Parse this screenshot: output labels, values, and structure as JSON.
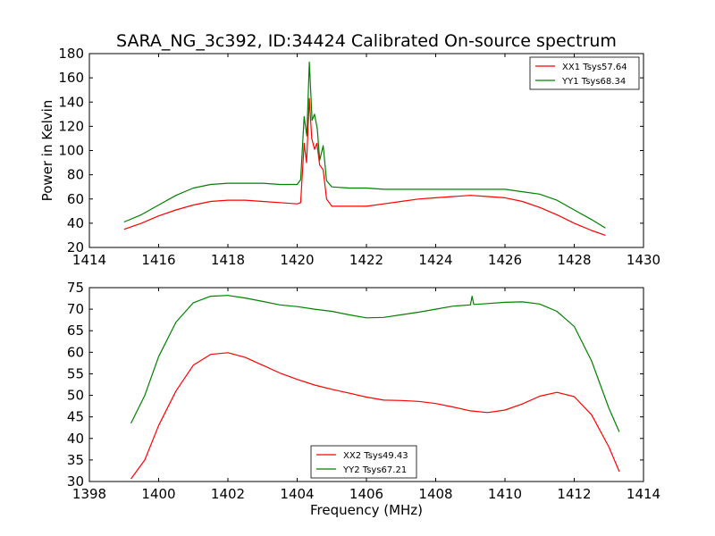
{
  "figure": {
    "title": "SARA_NG_3c392, ID:34424 Calibrated On-source spectrum"
  },
  "chart_data": [
    {
      "type": "line",
      "title": "SARA_NG_3c392, ID:34424 Calibrated On-source spectrum",
      "xlabel": "",
      "ylabel": "Power in Kelvin",
      "xlim": [
        1414,
        1430
      ],
      "ylim": [
        20,
        180
      ],
      "xticks": [
        1414,
        1416,
        1418,
        1420,
        1422,
        1424,
        1426,
        1428,
        1430
      ],
      "yticks": [
        20,
        40,
        60,
        80,
        100,
        120,
        140,
        160,
        180
      ],
      "grid": false,
      "legend": "top-right",
      "series": [
        {
          "name": "XX1 Tsys57.64",
          "color": "#ff0000",
          "points": [
            [
              1415.0,
              35
            ],
            [
              1415.5,
              40
            ],
            [
              1416.0,
              46
            ],
            [
              1416.5,
              51
            ],
            [
              1417.0,
              55
            ],
            [
              1417.5,
              58
            ],
            [
              1418.0,
              59
            ],
            [
              1418.5,
              59
            ],
            [
              1419.0,
              58
            ],
            [
              1419.5,
              57
            ],
            [
              1420.0,
              56
            ],
            [
              1420.1,
              57
            ],
            [
              1420.2,
              106
            ],
            [
              1420.27,
              90
            ],
            [
              1420.35,
              143
            ],
            [
              1420.42,
              110
            ],
            [
              1420.5,
              101
            ],
            [
              1420.57,
              106
            ],
            [
              1420.65,
              88
            ],
            [
              1420.75,
              84
            ],
            [
              1420.85,
              60
            ],
            [
              1421.0,
              54
            ],
            [
              1421.5,
              54
            ],
            [
              1422.0,
              54
            ],
            [
              1422.5,
              56
            ],
            [
              1423.0,
              58
            ],
            [
              1423.5,
              60
            ],
            [
              1424.0,
              61
            ],
            [
              1424.5,
              62
            ],
            [
              1425.0,
              63
            ],
            [
              1425.5,
              62
            ],
            [
              1426.0,
              61
            ],
            [
              1426.5,
              58
            ],
            [
              1427.0,
              53
            ],
            [
              1427.5,
              47
            ],
            [
              1428.0,
              40
            ],
            [
              1428.5,
              34
            ],
            [
              1428.9,
              30
            ]
          ]
        },
        {
          "name": "YY1 Tsys68.34",
          "color": "#008000",
          "points": [
            [
              1415.0,
              41
            ],
            [
              1415.5,
              47
            ],
            [
              1416.0,
              55
            ],
            [
              1416.5,
              63
            ],
            [
              1417.0,
              69
            ],
            [
              1417.5,
              72
            ],
            [
              1418.0,
              73
            ],
            [
              1418.5,
              73
            ],
            [
              1419.0,
              73
            ],
            [
              1419.5,
              72
            ],
            [
              1420.0,
              72
            ],
            [
              1420.1,
              76
            ],
            [
              1420.2,
              128
            ],
            [
              1420.28,
              112
            ],
            [
              1420.35,
              173
            ],
            [
              1420.43,
              125
            ],
            [
              1420.5,
              130
            ],
            [
              1420.58,
              118
            ],
            [
              1420.65,
              92
            ],
            [
              1420.75,
              104
            ],
            [
              1420.85,
              75
            ],
            [
              1421.0,
              70
            ],
            [
              1421.5,
              69
            ],
            [
              1422.0,
              69
            ],
            [
              1422.5,
              68
            ],
            [
              1423.0,
              68
            ],
            [
              1423.5,
              68
            ],
            [
              1424.0,
              68
            ],
            [
              1424.5,
              68
            ],
            [
              1425.0,
              68
            ],
            [
              1425.5,
              68
            ],
            [
              1426.0,
              68
            ],
            [
              1426.5,
              66
            ],
            [
              1427.0,
              64
            ],
            [
              1427.5,
              59
            ],
            [
              1428.0,
              51
            ],
            [
              1428.5,
              43
            ],
            [
              1428.9,
              36
            ]
          ]
        }
      ]
    },
    {
      "type": "line",
      "title": "",
      "xlabel": "Frequency (MHz)",
      "ylabel": "",
      "xlim": [
        1398,
        1414
      ],
      "ylim": [
        30,
        75
      ],
      "xticks": [
        1398,
        1400,
        1402,
        1404,
        1406,
        1408,
        1410,
        1412,
        1414
      ],
      "yticks": [
        30,
        35,
        40,
        45,
        50,
        55,
        60,
        65,
        70,
        75
      ],
      "grid": false,
      "legend": "bottom-center",
      "series": [
        {
          "name": "XX2 Tsys49.43",
          "color": "#ff0000",
          "points": [
            [
              1399.2,
              30.6
            ],
            [
              1399.6,
              35
            ],
            [
              1400.0,
              43
            ],
            [
              1400.5,
              51
            ],
            [
              1401.0,
              57
            ],
            [
              1401.5,
              59.5
            ],
            [
              1402.0,
              59.9
            ],
            [
              1402.5,
              58.8
            ],
            [
              1403.0,
              57
            ],
            [
              1403.5,
              55.2
            ],
            [
              1404.0,
              53.7
            ],
            [
              1404.5,
              52.4
            ],
            [
              1405.0,
              51.4
            ],
            [
              1405.5,
              50.5
            ],
            [
              1406.0,
              49.6
            ],
            [
              1406.5,
              48.9
            ],
            [
              1407.0,
              48.8
            ],
            [
              1407.5,
              48.6
            ],
            [
              1408.0,
              48.1
            ],
            [
              1408.5,
              47.3
            ],
            [
              1409.0,
              46.4
            ],
            [
              1409.5,
              46.0
            ],
            [
              1410.0,
              46.6
            ],
            [
              1410.5,
              48.0
            ],
            [
              1411.0,
              49.8
            ],
            [
              1411.5,
              50.7
            ],
            [
              1412.0,
              49.7
            ],
            [
              1412.5,
              45.5
            ],
            [
              1413.0,
              38
            ],
            [
              1413.3,
              32.3
            ]
          ]
        },
        {
          "name": "YY2 Tsys67.21",
          "color": "#008000",
          "points": [
            [
              1399.2,
              43.5
            ],
            [
              1399.6,
              50
            ],
            [
              1400.0,
              59
            ],
            [
              1400.5,
              67
            ],
            [
              1401.0,
              71.5
            ],
            [
              1401.5,
              73
            ],
            [
              1402.0,
              73.2
            ],
            [
              1402.5,
              72.6
            ],
            [
              1403.0,
              71.8
            ],
            [
              1403.5,
              71.0
            ],
            [
              1404.0,
              70.6
            ],
            [
              1404.5,
              70.0
            ],
            [
              1405.0,
              69.5
            ],
            [
              1405.5,
              68.7
            ],
            [
              1406.0,
              68.0
            ],
            [
              1406.5,
              68.1
            ],
            [
              1407.0,
              68.7
            ],
            [
              1407.5,
              69.3
            ],
            [
              1408.0,
              70.0
            ],
            [
              1408.5,
              70.7
            ],
            [
              1409.0,
              71.0
            ],
            [
              1409.05,
              73.0
            ],
            [
              1409.1,
              71.1
            ],
            [
              1409.5,
              71.3
            ],
            [
              1410.0,
              71.6
            ],
            [
              1410.5,
              71.7
            ],
            [
              1411.0,
              71.2
            ],
            [
              1411.5,
              69.5
            ],
            [
              1412.0,
              66
            ],
            [
              1412.5,
              58
            ],
            [
              1413.0,
              47
            ],
            [
              1413.3,
              41.5
            ]
          ]
        }
      ]
    }
  ]
}
